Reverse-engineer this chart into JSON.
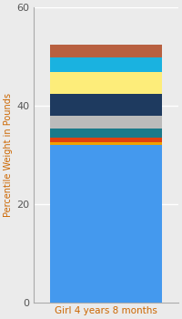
{
  "category": "Girl 4 years 8 months",
  "segments": [
    {
      "value": 32.0,
      "color": "#4499EE"
    },
    {
      "value": 0.6,
      "color": "#F0A000"
    },
    {
      "value": 1.0,
      "color": "#E04010"
    },
    {
      "value": 1.8,
      "color": "#1A7A8A"
    },
    {
      "value": 2.5,
      "color": "#BBBBBB"
    },
    {
      "value": 4.5,
      "color": "#1E3A5F"
    },
    {
      "value": 4.5,
      "color": "#FDED7A"
    },
    {
      "value": 3.0,
      "color": "#1AB2E0"
    },
    {
      "value": 2.5,
      "color": "#B86040"
    }
  ],
  "ylim": [
    0,
    60
  ],
  "yticks": [
    0,
    20,
    40,
    60
  ],
  "ylabel": "Percentile Weight in Pounds",
  "xlabel": "Girl 4 years 8 months",
  "bg_color": "#EBEBEB",
  "grid_color": "#FFFFFF",
  "label_color": "#CC6600",
  "tick_color": "#555555"
}
